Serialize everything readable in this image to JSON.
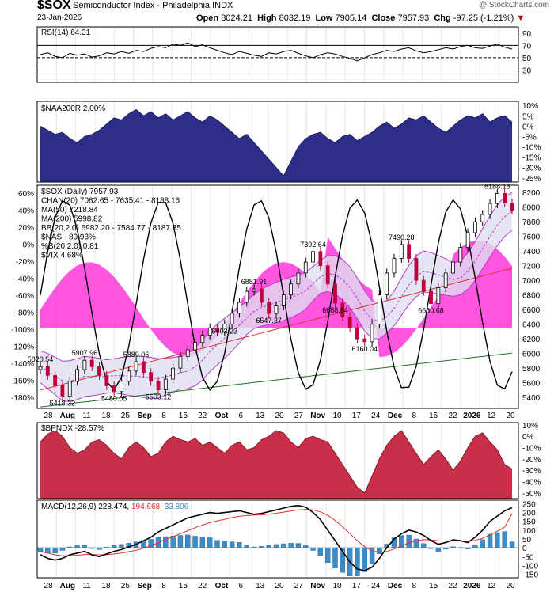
{
  "header": {
    "symbol": "$SOX",
    "name": "Semiconductor Index - Philadelphia INDX",
    "date": "23-Jan-2026",
    "open_label": "Open",
    "open": "8024.21",
    "high_label": "High",
    "high": "8032.19",
    "low_label": "Low",
    "low": "7905.14",
    "close_label": "Close",
    "close": "7957.93",
    "chg_label": "Chg",
    "chg": "-97.25 (-1.21%)",
    "watermark": "@ StockCharts.com"
  },
  "colors": {
    "naa": "#2e2e8a",
    "bpndx": "#c8304a",
    "vix": "#ff2ad8",
    "bb": "#b23cc8",
    "chan": "#8a8ab8",
    "ma50": "#e03030",
    "ma200": "#207020",
    "macd": "#000000",
    "signal": "#e03030",
    "hist": "#3c8cc8",
    "up": "#000000",
    "down": "#c0003c"
  },
  "chart_data": [
    {
      "type": "line",
      "panel": "rsi",
      "legend": "RSI(14) 64.31",
      "yticks": [
        "90",
        "70",
        "50",
        "30"
      ],
      "ylim": [
        10,
        100
      ],
      "reference_lines": [
        70,
        50,
        30
      ],
      "values": [
        55,
        58,
        52,
        50,
        57,
        54,
        56,
        51,
        53,
        58,
        56,
        60,
        57,
        62,
        60,
        65,
        68,
        66,
        72,
        70,
        74,
        68,
        71,
        66,
        62,
        58,
        55,
        60,
        57,
        54,
        52,
        58,
        56,
        60,
        62,
        57,
        53,
        50,
        55,
        58,
        56,
        52,
        49,
        45,
        50,
        55,
        58,
        62,
        60,
        64,
        66,
        61,
        58,
        60,
        63,
        66,
        64,
        68,
        70,
        66,
        65,
        69,
        72,
        67,
        64
      ]
    },
    {
      "type": "area",
      "panel": "naa200r",
      "legend": "$NAA200R 2.00%",
      "yticks": [
        "10%",
        "5%",
        "0%",
        "-5%",
        "-10%",
        "-15%",
        "-20%",
        "-25%"
      ],
      "ylim": [
        -27,
        12
      ],
      "values": [
        0,
        -2,
        -4,
        -3,
        -6,
        -8,
        -5,
        -4,
        -2,
        1,
        4,
        3,
        6,
        8,
        5,
        7,
        4,
        6,
        3,
        5,
        7,
        4,
        2,
        5,
        3,
        0,
        -3,
        -6,
        -4,
        -8,
        -12,
        -16,
        -20,
        -24,
        -17,
        -10,
        -6,
        -4,
        -3,
        -6,
        -8,
        -5,
        -4,
        -7,
        -5,
        -3,
        0,
        2,
        -1,
        1,
        4,
        3,
        5,
        2,
        -1,
        -3,
        0,
        3,
        5,
        4,
        6,
        2,
        4,
        5,
        2
      ]
    },
    {
      "type": "candlestick",
      "panel": "price",
      "legend": [
        "$SOX (Daily) 7957.93",
        "CHAN(20) 7082.65 - 7635.41 - 8188.16",
        "MA(50) 7218.84",
        "MA(200) 5998.82",
        "BB(20,2.0) 6982.20 - 7584.77 - 8187.35",
        "$NASI -89.93%",
        "%B(20,2.0) 0.81",
        "$VIX 4.68%"
      ],
      "yticks_left": [
        "60%",
        "40%",
        "20%",
        "0%",
        "-20%",
        "-40%",
        "-60%",
        "-80%",
        "-100%",
        "-120%",
        "-140%",
        "-160%",
        "-180%"
      ],
      "yticks_right": [
        "8200",
        "8000",
        "7800",
        "7600",
        "7400",
        "7200",
        "7000",
        "6800",
        "6600",
        "6400",
        "6200",
        "6000",
        "5800",
        "5600",
        "5400"
      ],
      "ylim": [
        5250,
        8300
      ],
      "xticks": [
        "28",
        "Aug",
        "11",
        "18",
        "25",
        "Sep",
        "8",
        "15",
        "22",
        "Oct",
        "6",
        "13",
        "20",
        "27",
        "Nov",
        "10",
        "17",
        "24",
        "Dec",
        "8",
        "15",
        "22",
        "2026",
        "12",
        "20"
      ],
      "annotations": [
        "5820.54",
        "5907.96",
        "5889.06",
        "5418.32",
        "5480.05",
        "5503.12",
        "6881.91",
        "6403.23",
        "6547.37",
        "7392.64",
        "6688.84",
        "6160.04",
        "7490.28",
        "6680.68",
        "8188.16"
      ],
      "closes": [
        5820,
        5700,
        5560,
        5418,
        5620,
        5780,
        5908,
        5820,
        5700,
        5560,
        5480,
        5620,
        5760,
        5889,
        5740,
        5620,
        5503,
        5650,
        5800,
        5960,
        6050,
        6150,
        6250,
        6350,
        6300,
        6403,
        6550,
        6700,
        6850,
        6882,
        6700,
        6547,
        6650,
        6800,
        6950,
        7100,
        7250,
        7393,
        7200,
        6950,
        6689,
        6500,
        6350,
        6200,
        6160,
        6400,
        6800,
        7100,
        7300,
        7490,
        7300,
        7000,
        6850,
        6681,
        6900,
        7100,
        7250,
        7450,
        7650,
        7800,
        7900,
        8050,
        8188,
        8056,
        7958
      ]
    },
    {
      "type": "area",
      "panel": "bpndx",
      "legend": "$BPNDX -28.57%",
      "yticks": [
        "10%",
        "0%",
        "-10%",
        "-20%",
        "-30%",
        "-40%",
        "-50%"
      ],
      "ylim": [
        -55,
        12
      ],
      "values": [
        -5,
        2,
        5,
        0,
        -10,
        -15,
        -12,
        -5,
        -3,
        -8,
        -15,
        -20,
        -10,
        -5,
        -10,
        -18,
        -15,
        -5,
        0,
        -3,
        -5,
        -2,
        -8,
        -5,
        -10,
        -15,
        -8,
        -5,
        -12,
        -10,
        -3,
        0,
        5,
        3,
        -5,
        -10,
        -2,
        0,
        -3,
        -5,
        -15,
        -25,
        -35,
        -45,
        -50,
        -35,
        -20,
        -8,
        0,
        5,
        -5,
        -15,
        -25,
        -18,
        -12,
        -20,
        -30,
        -22,
        -10,
        0,
        3,
        -5,
        -12,
        -25,
        -29
      ]
    },
    {
      "type": "line",
      "panel": "macd",
      "legend_name": "MACD(12,26,9)",
      "legend_macd": "228.474",
      "legend_signal": "194.668",
      "legend_hist": "33.806",
      "yticks": [
        "250",
        "200",
        "150",
        "100",
        "50",
        "0",
        "-50",
        "-100",
        "-150"
      ],
      "ylim": [
        -170,
        270
      ],
      "macd": [
        -40,
        -60,
        -70,
        -60,
        -40,
        -30,
        -20,
        -40,
        -50,
        -35,
        -20,
        -10,
        5,
        20,
        40,
        60,
        90,
        110,
        130,
        150,
        170,
        180,
        190,
        200,
        195,
        200,
        205,
        210,
        200,
        190,
        195,
        205,
        215,
        225,
        235,
        240,
        230,
        200,
        160,
        100,
        40,
        -20,
        -80,
        -120,
        -130,
        -110,
        -60,
        0,
        50,
        80,
        100,
        90,
        70,
        40,
        20,
        30,
        45,
        40,
        30,
        60,
        100,
        150,
        180,
        210,
        228
      ],
      "signal": [
        -20,
        -30,
        -40,
        -45,
        -45,
        -42,
        -38,
        -38,
        -40,
        -39,
        -35,
        -30,
        -22,
        -14,
        -2,
        12,
        30,
        47,
        63,
        80,
        97,
        114,
        129,
        143,
        153,
        162,
        171,
        179,
        183,
        185,
        187,
        191,
        196,
        202,
        209,
        215,
        218,
        215,
        204,
        184,
        155,
        120,
        80,
        40,
        6,
        -17,
        -26,
        -21,
        -7,
        10,
        28,
        40,
        46,
        45,
        40,
        38,
        39,
        39,
        37,
        42,
        54,
        73,
        94,
        118,
        195
      ],
      "hist": [
        -20,
        -30,
        -30,
        -15,
        5,
        12,
        18,
        -2,
        -10,
        4,
        15,
        20,
        27,
        34,
        42,
        48,
        60,
        63,
        67,
        70,
        73,
        66,
        61,
        57,
        42,
        38,
        34,
        31,
        17,
        5,
        8,
        14,
        19,
        23,
        26,
        25,
        12,
        -15,
        -44,
        -84,
        -115,
        -140,
        -160,
        -160,
        -136,
        -93,
        -34,
        21,
        57,
        70,
        72,
        50,
        24,
        -5,
        -20,
        -8,
        6,
        1,
        -7,
        18,
        46,
        77,
        86,
        92,
        34
      ]
    }
  ]
}
